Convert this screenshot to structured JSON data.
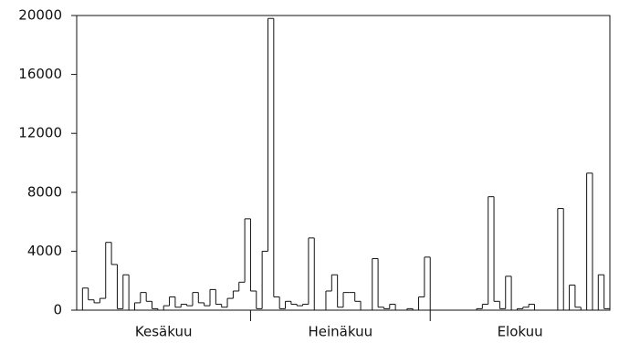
{
  "chart_data": {
    "type": "step",
    "groups": [
      {
        "label": "Kesäkuu",
        "values": [
          0,
          1500,
          700,
          500,
          800,
          4600,
          3100,
          100,
          2400,
          0,
          500,
          1200,
          600,
          100,
          0,
          300,
          900,
          200,
          400,
          300,
          1200,
          500,
          300,
          1400,
          400,
          200,
          800,
          1300,
          1900,
          6200
        ]
      },
      {
        "label": "Heinäkuu",
        "values": [
          1300,
          100,
          4000,
          19800,
          900,
          100,
          600,
          400,
          300,
          400,
          4900,
          0,
          0,
          1300,
          2400,
          200,
          1200,
          1200,
          600,
          0,
          0,
          3500,
          200,
          100,
          400,
          0,
          0,
          100,
          0,
          900,
          3600
        ]
      },
      {
        "label": "Elokuu",
        "values": [
          0,
          0,
          0,
          0,
          0,
          0,
          0,
          0,
          100,
          400,
          7700,
          600,
          100,
          2300,
          0,
          100,
          200,
          400,
          0,
          0,
          0,
          0,
          6900,
          0,
          1700,
          200,
          0,
          9300,
          0,
          2400,
          100
        ]
      }
    ],
    "color": "#111111",
    "ylim": [
      0,
      20000
    ],
    "yticks": [
      0,
      4000,
      8000,
      12000,
      16000,
      20000
    ]
  }
}
